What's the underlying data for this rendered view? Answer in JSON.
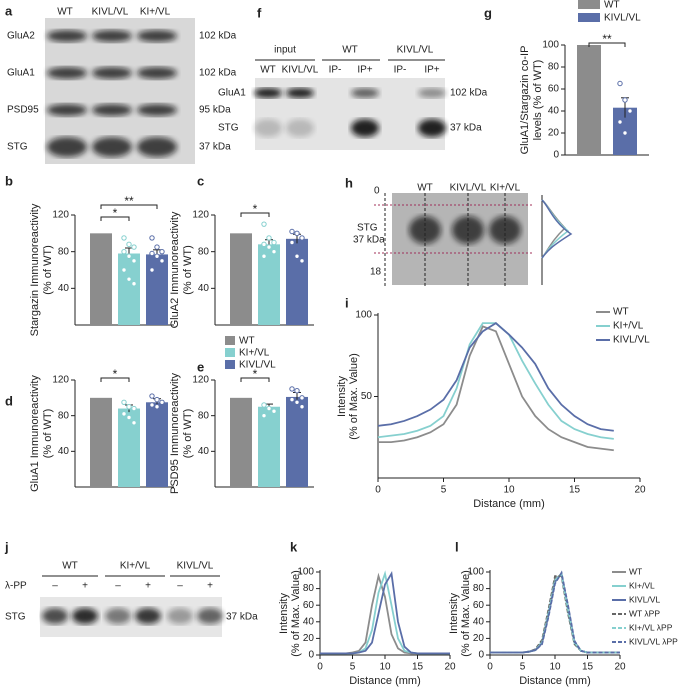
{
  "panel_labels": [
    "a",
    "b",
    "c",
    "d",
    "e",
    "f",
    "g",
    "h",
    "i",
    "j",
    "k",
    "l"
  ],
  "blot_a": {
    "lanes": [
      "WT",
      "KIVL/VL",
      "KI+/VL"
    ],
    "rows": [
      "GluA2",
      "GluA1",
      "PSD95",
      "STG"
    ],
    "sizes": [
      "102 kDa",
      "102 kDa",
      "95 kDa",
      "37 kDa"
    ]
  },
  "blot_f": {
    "groups": [
      "input",
      "WT",
      "KIVL/VL"
    ],
    "lanes": [
      "WT",
      "KIVL/VL",
      "IP-",
      "IP+",
      "IP-",
      "IP+"
    ],
    "rows": [
      "GluA1",
      "STG"
    ],
    "sizes": [
      "102 kDa",
      "37 kDa"
    ]
  },
  "blot_h": {
    "lanes": [
      "WT",
      "KIVL/VL",
      "KI+/VL"
    ],
    "band": "STG",
    "size": "37 kDa",
    "ends": [
      "0",
      "18"
    ]
  },
  "blot_j": {
    "groups": [
      "WT",
      "KI+/VL",
      "KIVL/VL"
    ],
    "treatment": "λ-PP",
    "signs": [
      "–",
      "+",
      "–",
      "+",
      "–",
      "+"
    ],
    "row": "STG",
    "size": "37 kDa"
  },
  "legend": [
    {
      "name": "WT",
      "color": "#8c8c8c"
    },
    {
      "name": "KI+/VL",
      "color": "#86d0cf"
    },
    {
      "name": "KIVL/VL",
      "color": "#5a6ea8"
    }
  ],
  "chart_data": [
    {
      "type": "bar",
      "ylabel": [
        "Stargazin Immunoreactivity",
        "(% of WT)"
      ],
      "values": [
        100,
        78,
        77
      ],
      "errors": [
        0,
        6,
        5
      ],
      "colors": [
        "#8c8c8c",
        "#86d0cf",
        "#5a6ea8"
      ],
      "points": [
        [],
        [
          95,
          88,
          85,
          80,
          75,
          70,
          60,
          50,
          45
        ],
        [
          95,
          85,
          80,
          78,
          75,
          70,
          60
        ]
      ],
      "significance": [
        "*",
        "**"
      ],
      "ylim": [
        0,
        120
      ],
      "yticks": [
        40,
        80,
        120
      ]
    },
    {
      "type": "bar",
      "ylabel": [
        "GluA2 Immunoreactivity",
        "(% of WT)"
      ],
      "values": [
        100,
        88,
        94
      ],
      "errors": [
        0,
        5,
        5
      ],
      "colors": [
        "#8c8c8c",
        "#86d0cf",
        "#5a6ea8"
      ],
      "points": [
        [],
        [
          110,
          95,
          90,
          88,
          85,
          80,
          75
        ],
        [
          102,
          100,
          95,
          90,
          75,
          70
        ]
      ],
      "significance": [
        "*"
      ],
      "ylim": [
        0,
        120
      ],
      "yticks": [
        40,
        80,
        120
      ]
    },
    {
      "type": "bar",
      "ylabel": [
        "GluA1 Immunoreactivity",
        "(% of WT)"
      ],
      "values": [
        100,
        88,
        95
      ],
      "errors": [
        0,
        4,
        4
      ],
      "colors": [
        "#8c8c8c",
        "#86d0cf",
        "#5a6ea8"
      ],
      "points": [
        [],
        [
          95,
          90,
          88,
          82,
          78,
          72
        ],
        [
          102,
          98,
          95,
          92,
          90
        ]
      ],
      "significance": [
        "*"
      ],
      "ylim": [
        0,
        120
      ],
      "yticks": [
        40,
        80,
        120
      ]
    },
    {
      "type": "bar",
      "ylabel": [
        "PSD95 Immunoreactivity",
        "(% of WT)"
      ],
      "values": [
        100,
        90,
        101
      ],
      "errors": [
        0,
        3,
        5
      ],
      "colors": [
        "#8c8c8c",
        "#86d0cf",
        "#5a6ea8"
      ],
      "points": [
        [],
        [
          92,
          88,
          85,
          80
        ],
        [
          110,
          108,
          100,
          98,
          95,
          90
        ]
      ],
      "significance": [
        "*"
      ],
      "ylim": [
        0,
        120
      ],
      "yticks": [
        40,
        80,
        120
      ]
    },
    {
      "type": "bar",
      "ylabel": [
        "GluA1/Stargazin co-IP",
        "levels (% of WT)"
      ],
      "values": [
        100,
        43
      ],
      "errors": [
        0,
        9
      ],
      "colors": [
        "#8c8c8c",
        "#5a6ea8"
      ],
      "points": [
        [],
        [
          65,
          50,
          40,
          30,
          20
        ]
      ],
      "significance": [
        "**"
      ],
      "legend": [
        "WT",
        "KIVL/VL"
      ],
      "ylim": [
        0,
        100
      ],
      "yticks": [
        0,
        20,
        40,
        60,
        80,
        100
      ]
    },
    {
      "type": "line",
      "xlabel": "Distance (mm)",
      "ylabel": [
        "Intensity",
        "(% of Max. Value)"
      ],
      "x": [
        0,
        1,
        2,
        3,
        4,
        5,
        6,
        7,
        8,
        9,
        10,
        11,
        12,
        13,
        14,
        15,
        16,
        17,
        18
      ],
      "series": [
        {
          "name": "WT",
          "color": "#8c8c8c",
          "values": [
            22,
            22,
            23,
            25,
            28,
            33,
            45,
            75,
            93,
            90,
            70,
            50,
            38,
            30,
            25,
            22,
            19,
            18,
            17
          ]
        },
        {
          "name": "KI+/VL",
          "color": "#86d0cf",
          "values": [
            25,
            26,
            27,
            29,
            32,
            38,
            55,
            82,
            95,
            95,
            88,
            72,
            58,
            45,
            35,
            30,
            27,
            25,
            24
          ]
        },
        {
          "name": "KIVL/VL",
          "color": "#5a6ea8",
          "values": [
            32,
            33,
            35,
            38,
            42,
            48,
            60,
            80,
            90,
            95,
            88,
            80,
            70,
            55,
            45,
            38,
            33,
            30,
            29
          ]
        }
      ],
      "xlim": [
        0,
        20
      ],
      "xticks": [
        0,
        5,
        10,
        15,
        20
      ],
      "ylim": [
        0,
        100
      ],
      "yticks": [
        50,
        100
      ]
    },
    {
      "type": "line",
      "xlabel": "Distance (mm)",
      "ylabel": [
        "Intensity",
        "(% of Max. Value)"
      ],
      "x": [
        0,
        1,
        2,
        3,
        4,
        5,
        6,
        7,
        8,
        9,
        10,
        11,
        12,
        13,
        14,
        15,
        16,
        17,
        18,
        19,
        20
      ],
      "series": [
        {
          "color": "#8c8c8c",
          "values": [
            2,
            2,
            2,
            2,
            2,
            3,
            5,
            15,
            60,
            95,
            70,
            25,
            8,
            3,
            2,
            2,
            2,
            2,
            2,
            2,
            2
          ]
        },
        {
          "color": "#86d0cf",
          "values": [
            2,
            2,
            2,
            2,
            2,
            2,
            3,
            8,
            30,
            75,
            98,
            60,
            20,
            5,
            3,
            2,
            2,
            2,
            2,
            2,
            2
          ]
        },
        {
          "color": "#5a6ea8",
          "values": [
            2,
            2,
            2,
            2,
            2,
            2,
            3,
            5,
            15,
            50,
            85,
            98,
            40,
            10,
            3,
            2,
            2,
            2,
            2,
            2,
            2
          ]
        }
      ],
      "xlim": [
        0,
        20
      ],
      "xticks": [
        0,
        5,
        10,
        15,
        20
      ],
      "ylim": [
        0,
        100
      ],
      "yticks": [
        0,
        20,
        40,
        60,
        80,
        100
      ]
    },
    {
      "type": "line",
      "xlabel": "Distance (mm)",
      "ylabel": [
        "Intensity",
        "(% of Max. Value)"
      ],
      "x": [
        0,
        1,
        2,
        3,
        4,
        5,
        6,
        7,
        8,
        9,
        10,
        11,
        12,
        13,
        14,
        15,
        16,
        17,
        18,
        19,
        20
      ],
      "series": [
        {
          "name": "WT",
          "color": "#8c8c8c",
          "values": [
            3,
            3,
            3,
            3,
            3,
            3,
            4,
            6,
            15,
            50,
            92,
            97,
            55,
            15,
            5,
            3,
            3,
            3,
            3,
            3,
            3
          ]
        },
        {
          "name": "KI+/VL",
          "color": "#86d0cf",
          "values": [
            3,
            3,
            3,
            3,
            3,
            3,
            4,
            6,
            16,
            52,
            90,
            98,
            52,
            14,
            5,
            3,
            3,
            3,
            3,
            3,
            3
          ]
        },
        {
          "name": "KIVL/VL",
          "color": "#5a6ea8",
          "values": [
            3,
            3,
            3,
            3,
            3,
            3,
            4,
            6,
            14,
            48,
            88,
            98,
            58,
            16,
            5,
            3,
            3,
            3,
            3,
            3,
            3
          ]
        },
        {
          "name": "WT λPP",
          "color": "#666666",
          "dash": true,
          "values": [
            3,
            3,
            3,
            3,
            3,
            3,
            4,
            7,
            18,
            55,
            95,
            95,
            50,
            13,
            5,
            3,
            3,
            3,
            3,
            3,
            3
          ]
        },
        {
          "name": "KI+/VL λPP",
          "color": "#86d0cf",
          "dash": true,
          "values": [
            3,
            3,
            3,
            3,
            3,
            3,
            4,
            6,
            15,
            50,
            90,
            97,
            55,
            15,
            5,
            3,
            3,
            3,
            3,
            3,
            3
          ]
        },
        {
          "name": "KIVL/VL λPP",
          "color": "#5a6ea8",
          "dash": true,
          "values": [
            3,
            3,
            3,
            3,
            3,
            3,
            4,
            6,
            13,
            46,
            86,
            99,
            60,
            17,
            5,
            3,
            3,
            3,
            3,
            3,
            3
          ]
        }
      ],
      "xlim": [
        0,
        20
      ],
      "xticks": [
        0,
        5,
        10,
        15,
        20
      ],
      "ylim": [
        0,
        100
      ],
      "yticks": [
        0,
        20,
        40,
        60,
        80,
        100
      ]
    }
  ]
}
